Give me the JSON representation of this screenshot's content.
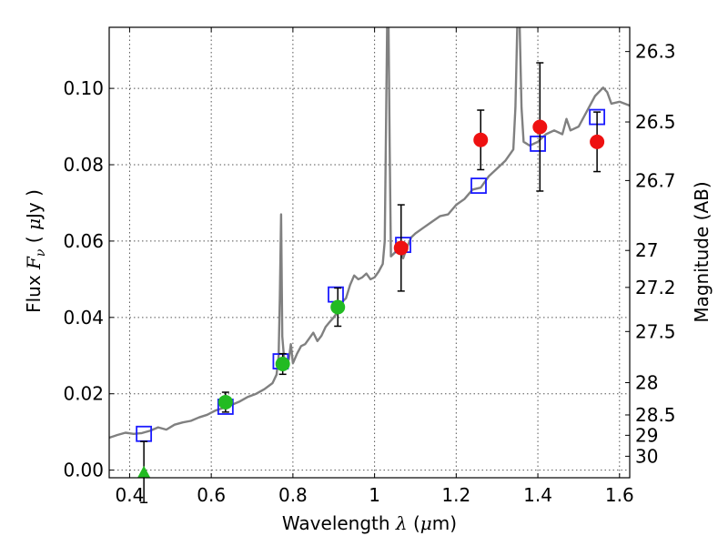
{
  "chart_data": {
    "type": "scatter",
    "xlabel": {
      "pre": "Wavelength  ",
      "sym": "λ",
      "post": " (",
      "mu": "μ",
      "unit": "m)"
    },
    "ylabel": {
      "pre": "Flux  ",
      "sym": "F",
      "sub": "ν",
      "post": "  ( ",
      "mu": "μ",
      "unit": "Jy )"
    },
    "y2label": "Magnitude (AB)",
    "xlim": [
      0.35,
      1.625
    ],
    "ylim": [
      -0.002,
      0.116
    ],
    "grid": true,
    "xticks": [
      {
        "v": 0.4,
        "label": "0.4"
      },
      {
        "v": 0.6,
        "label": "0.6"
      },
      {
        "v": 0.8,
        "label": "0.8"
      },
      {
        "v": 1.0,
        "label": "1"
      },
      {
        "v": 1.2,
        "label": "1.2"
      },
      {
        "v": 1.4,
        "label": "1.4"
      },
      {
        "v": 1.6,
        "label": "1.6"
      }
    ],
    "yticks": [
      {
        "v": 0.0,
        "label": "0.00"
      },
      {
        "v": 0.02,
        "label": "0.02"
      },
      {
        "v": 0.04,
        "label": "0.04"
      },
      {
        "v": 0.06,
        "label": "0.06"
      },
      {
        "v": 0.08,
        "label": "0.08"
      },
      {
        "v": 0.1,
        "label": "0.10"
      }
    ],
    "mag_ticks": [
      {
        "mag": 26.3,
        "label": "26.3"
      },
      {
        "mag": 26.5,
        "label": "26.5"
      },
      {
        "mag": 26.7,
        "label": "26.7"
      },
      {
        "mag": 27.0,
        "label": "27"
      },
      {
        "mag": 27.2,
        "label": "27.2"
      },
      {
        "mag": 27.5,
        "label": "27.5"
      },
      {
        "mag": 28.0,
        "label": "28"
      },
      {
        "mag": 28.5,
        "label": "28.5"
      },
      {
        "mag": 29.0,
        "label": "29"
      },
      {
        "mag": 30.0,
        "label": "30"
      }
    ],
    "colors": {
      "model": "#808080",
      "optical": "#22bb22",
      "nir": "#ee1111",
      "model_phot": "#1a1aff",
      "errorbar": "#000000"
    },
    "series": [
      {
        "kind": "model_spectrum",
        "points": [
          [
            0.35,
            0.0085
          ],
          [
            0.37,
            0.0092
          ],
          [
            0.39,
            0.0098
          ],
          [
            0.41,
            0.0095
          ],
          [
            0.43,
            0.0097
          ],
          [
            0.45,
            0.0103
          ],
          [
            0.47,
            0.0112
          ],
          [
            0.49,
            0.0106
          ],
          [
            0.51,
            0.0119
          ],
          [
            0.53,
            0.0125
          ],
          [
            0.55,
            0.0129
          ],
          [
            0.57,
            0.0138
          ],
          [
            0.59,
            0.0145
          ],
          [
            0.61,
            0.0156
          ],
          [
            0.63,
            0.0163
          ],
          [
            0.65,
            0.0171
          ],
          [
            0.67,
            0.018
          ],
          [
            0.69,
            0.0192
          ],
          [
            0.71,
            0.02
          ],
          [
            0.73,
            0.0212
          ],
          [
            0.75,
            0.0228
          ],
          [
            0.76,
            0.025
          ],
          [
            0.765,
            0.03
          ],
          [
            0.768,
            0.045
          ],
          [
            0.771,
            0.067
          ],
          [
            0.774,
            0.035
          ],
          [
            0.78,
            0.0272
          ],
          [
            0.79,
            0.029
          ],
          [
            0.795,
            0.033
          ],
          [
            0.8,
            0.028
          ],
          [
            0.81,
            0.0305
          ],
          [
            0.82,
            0.0325
          ],
          [
            0.83,
            0.033
          ],
          [
            0.84,
            0.0345
          ],
          [
            0.85,
            0.036
          ],
          [
            0.86,
            0.0338
          ],
          [
            0.87,
            0.0352
          ],
          [
            0.88,
            0.0375
          ],
          [
            0.89,
            0.0388
          ],
          [
            0.9,
            0.04
          ],
          [
            0.91,
            0.0415
          ],
          [
            0.92,
            0.044
          ],
          [
            0.93,
            0.045
          ],
          [
            0.94,
            0.0485
          ],
          [
            0.95,
            0.051
          ],
          [
            0.96,
            0.05
          ],
          [
            0.97,
            0.0505
          ],
          [
            0.98,
            0.0515
          ],
          [
            0.99,
            0.05
          ],
          [
            1.0,
            0.0505
          ],
          [
            1.01,
            0.052
          ],
          [
            1.02,
            0.054
          ],
          [
            1.025,
            0.06
          ],
          [
            1.028,
            0.09
          ],
          [
            1.031,
            0.118
          ],
          [
            1.034,
            0.118
          ],
          [
            1.037,
            0.085
          ],
          [
            1.04,
            0.056
          ],
          [
            1.05,
            0.057
          ],
          [
            1.06,
            0.059
          ],
          [
            1.07,
            0.0555
          ],
          [
            1.08,
            0.0585
          ],
          [
            1.09,
            0.061
          ],
          [
            1.1,
            0.062
          ],
          [
            1.12,
            0.0635
          ],
          [
            1.14,
            0.065
          ],
          [
            1.16,
            0.0665
          ],
          [
            1.18,
            0.067
          ],
          [
            1.2,
            0.0695
          ],
          [
            1.22,
            0.071
          ],
          [
            1.24,
            0.0735
          ],
          [
            1.26,
            0.074
          ],
          [
            1.28,
            0.077
          ],
          [
            1.3,
            0.079
          ],
          [
            1.32,
            0.081
          ],
          [
            1.34,
            0.084
          ],
          [
            1.345,
            0.095
          ],
          [
            1.35,
            0.118
          ],
          [
            1.355,
            0.118
          ],
          [
            1.36,
            0.095
          ],
          [
            1.365,
            0.086
          ],
          [
            1.38,
            0.085
          ],
          [
            1.4,
            0.086
          ],
          [
            1.42,
            0.088
          ],
          [
            1.44,
            0.089
          ],
          [
            1.46,
            0.088
          ],
          [
            1.47,
            0.092
          ],
          [
            1.48,
            0.089
          ],
          [
            1.5,
            0.09
          ],
          [
            1.52,
            0.094
          ],
          [
            1.54,
            0.098
          ],
          [
            1.56,
            0.1002
          ],
          [
            1.57,
            0.099
          ],
          [
            1.58,
            0.096
          ],
          [
            1.6,
            0.0965
          ],
          [
            1.625,
            0.0955
          ]
        ]
      },
      {
        "kind": "observed_optical",
        "name": "",
        "points": [
          {
            "x": 0.435,
            "y": -0.0005,
            "err": 0.008,
            "marker": "triangle"
          },
          {
            "x": 0.635,
            "y": 0.0178,
            "err": 0.0026,
            "marker": "circle"
          },
          {
            "x": 0.775,
            "y": 0.0278,
            "err": 0.0027,
            "marker": "circle"
          },
          {
            "x": 0.91,
            "y": 0.0427,
            "err": 0.005,
            "marker": "circle"
          }
        ]
      },
      {
        "kind": "observed_nir",
        "name": "",
        "points": [
          {
            "x": 1.065,
            "y": 0.0582,
            "err": 0.0113
          },
          {
            "x": 1.26,
            "y": 0.0865,
            "err": 0.0078
          },
          {
            "x": 1.405,
            "y": 0.0899,
            "err": 0.0168
          },
          {
            "x": 1.545,
            "y": 0.086,
            "err": 0.0078
          }
        ]
      },
      {
        "kind": "model_photometry",
        "name": "",
        "points": [
          {
            "x": 0.435,
            "y": 0.0095
          },
          {
            "x": 0.635,
            "y": 0.0166
          },
          {
            "x": 0.77,
            "y": 0.0285
          },
          {
            "x": 0.905,
            "y": 0.046
          },
          {
            "x": 1.07,
            "y": 0.059
          },
          {
            "x": 1.255,
            "y": 0.0745
          },
          {
            "x": 1.4,
            "y": 0.0855
          },
          {
            "x": 1.545,
            "y": 0.0925
          }
        ]
      }
    ]
  }
}
